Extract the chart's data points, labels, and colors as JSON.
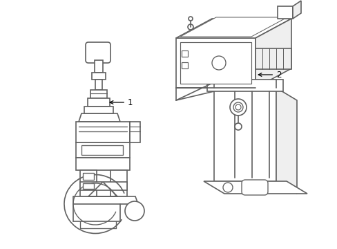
{
  "bg_color": "#ffffff",
  "line_color": "#606060",
  "line_width": 1.2,
  "label_color": "#000000",
  "label_fontsize": 8.5,
  "fig_width": 4.89,
  "fig_height": 3.6,
  "dpi": 100,
  "item1_label": "1",
  "item2_label": "2"
}
